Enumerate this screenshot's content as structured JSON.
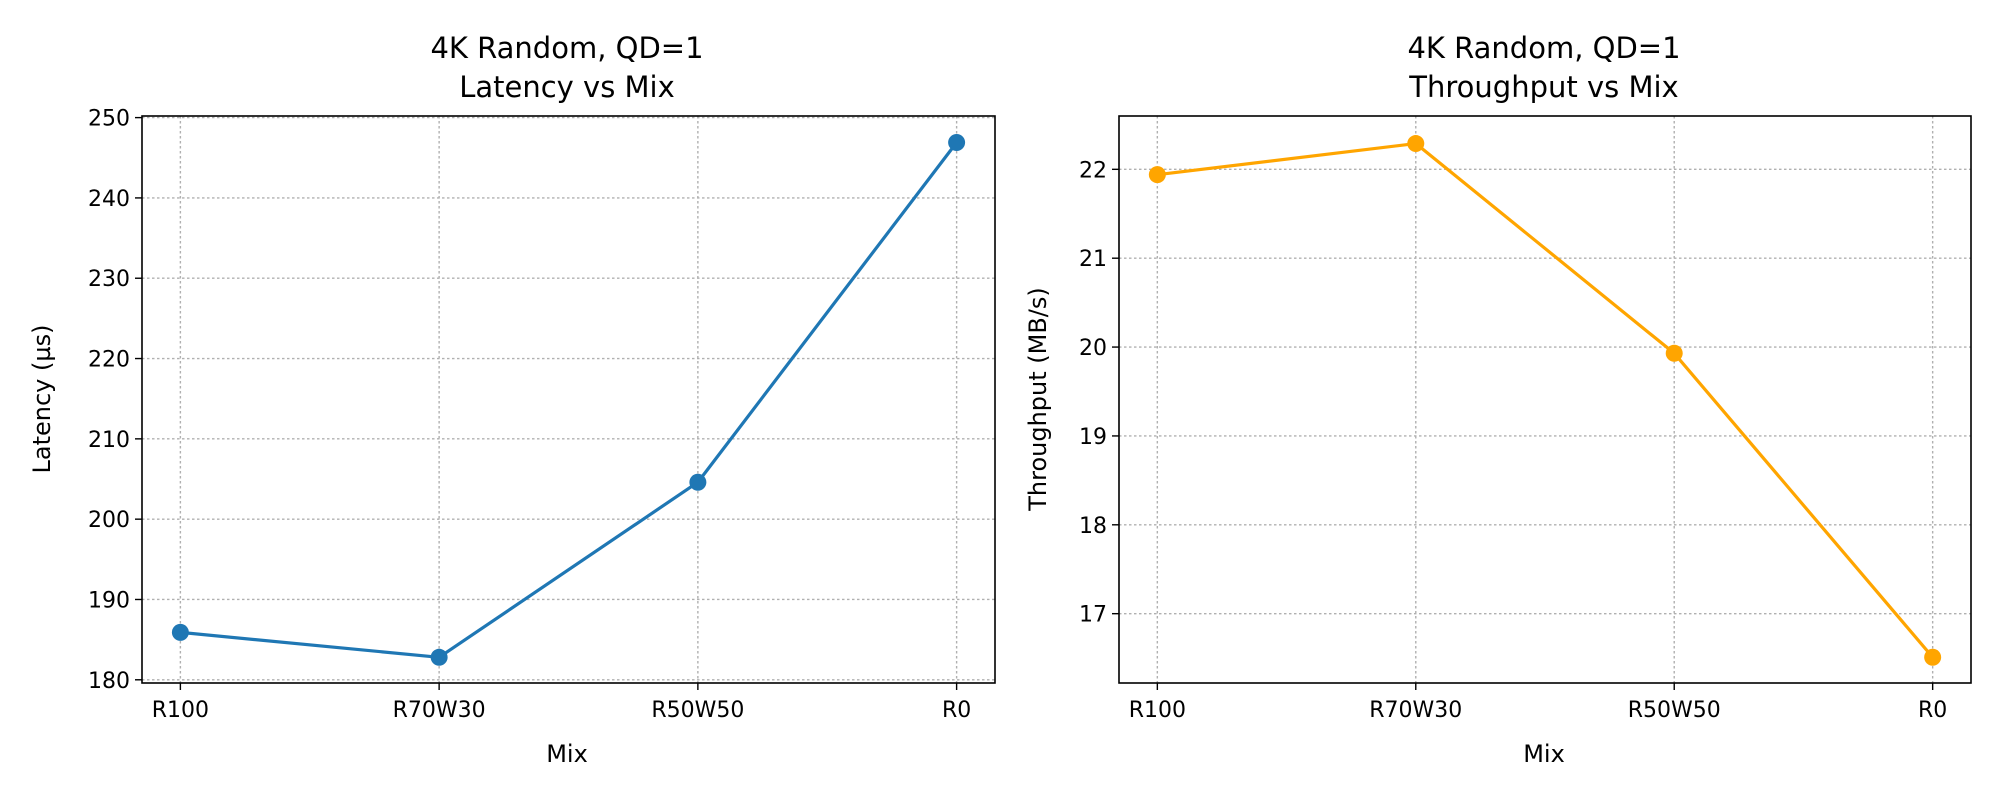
{
  "chart_data": [
    {
      "type": "line",
      "title_line1": "4K Random, QD=1",
      "title_line2": "Latency vs Mix",
      "xlabel": "Mix",
      "ylabel": "Latency (µs)",
      "categories": [
        "R100",
        "R70W30",
        "R50W50",
        "R0"
      ],
      "series": [
        {
          "values": [
            185.9,
            182.8,
            204.6,
            246.9
          ],
          "color": "#1f77b4"
        }
      ],
      "ylim": [
        179.6,
        250.2
      ],
      "yticks": [
        180,
        190,
        200,
        210,
        220,
        230,
        240,
        250
      ],
      "grid": true
    },
    {
      "type": "line",
      "title_line1": "4K Random, QD=1",
      "title_line2": "Throughput vs Mix",
      "xlabel": "Mix",
      "ylabel": "Throughput (MB/s)",
      "categories": [
        "R100",
        "R70W30",
        "R50W50",
        "R0"
      ],
      "series": [
        {
          "values": [
            21.94,
            22.29,
            19.93,
            16.51
          ],
          "color": "#ffa500"
        }
      ],
      "ylim": [
        16.22,
        22.6
      ],
      "yticks": [
        17,
        18,
        19,
        20,
        21,
        22
      ],
      "grid": true
    }
  ]
}
